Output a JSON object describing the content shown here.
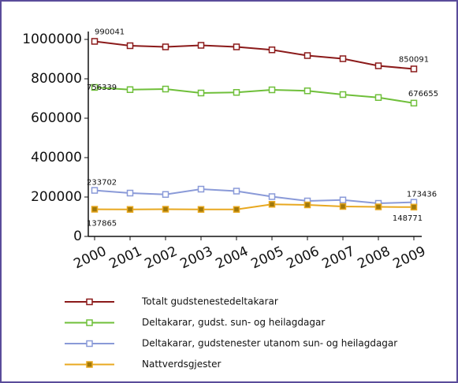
{
  "chart_data": {
    "type": "line",
    "categories": [
      "2000",
      "2001",
      "2002",
      "2003",
      "2004",
      "2005",
      "2006",
      "2007",
      "2008",
      "2009"
    ],
    "series": [
      {
        "name": "Totalt gudstenestedeltakarar",
        "color": "#8b1a1a",
        "marker": "open",
        "values": [
          990041,
          968000,
          962000,
          970000,
          962000,
          947000,
          918000,
          902000,
          866000,
          850091
        ]
      },
      {
        "name": "Deltakarar, gudst. sun- og heilagdagar",
        "color": "#6fbf3a",
        "marker": "open",
        "values": [
          756339,
          745000,
          748000,
          728000,
          731000,
          744000,
          739000,
          720000,
          705000,
          676655
        ]
      },
      {
        "name": "Deltakarar, gudstenester utanom sun- og heilagdagar",
        "color": "#8a9ad8",
        "marker": "open",
        "values": [
          233702,
          220000,
          213000,
          240000,
          230000,
          202000,
          180000,
          185000,
          168000,
          173436
        ]
      },
      {
        "name": "Nattverdsgjester",
        "color": "#e8a820",
        "marker": "filled",
        "values": [
          137865,
          137000,
          138000,
          137000,
          137000,
          163000,
          160000,
          152000,
          150000,
          148771
        ]
      }
    ],
    "ylim": [
      0,
      1000000
    ],
    "yticks": [
      0,
      200000,
      400000,
      600000,
      800000,
      1000000
    ]
  }
}
